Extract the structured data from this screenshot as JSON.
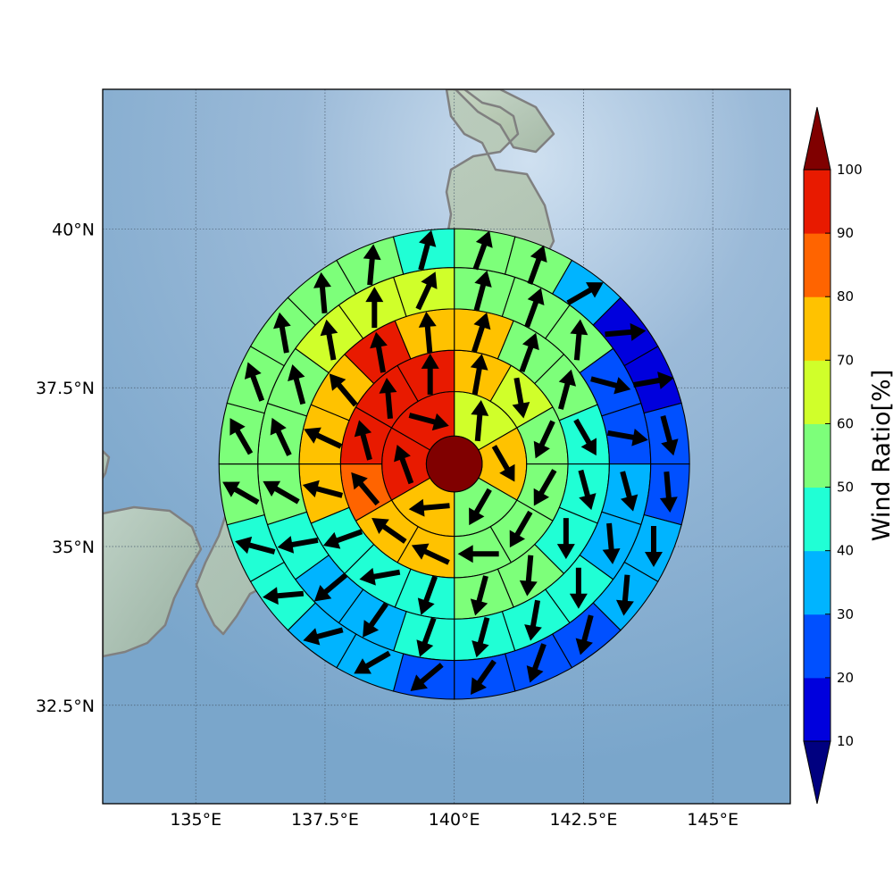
{
  "chart_data": {
    "type": "polar-sector-map",
    "map": {
      "lon_ticks": [
        {
          "value": 135,
          "label": "135°E"
        },
        {
          "value": 137.5,
          "label": "137.5°E"
        },
        {
          "value": 140,
          "label": "140°E"
        },
        {
          "value": 142.5,
          "label": "142.5°E"
        },
        {
          "value": 145,
          "label": "145°E"
        }
      ],
      "lat_ticks": [
        {
          "value": 32.5,
          "label": "32.5°N"
        },
        {
          "value": 35,
          "label": "35°N"
        },
        {
          "value": 37.5,
          "label": "37.5°N"
        },
        {
          "value": 40,
          "label": "40°N"
        }
      ],
      "lon_range": [
        133.2,
        146.5
      ],
      "lat_range": [
        30.95,
        42.2
      ],
      "grid": true,
      "coastline_color": "#808080"
    },
    "center": {
      "lon": 140,
      "lat": 36.3,
      "value": 100
    },
    "ring_radii_deg": [
      0.54,
      1.4,
      2.2,
      3.0,
      3.8,
      4.55
    ],
    "rings": [
      {
        "ring": 1,
        "sectors": 6,
        "values": [
          60,
          70,
          50,
          70,
          95,
          95
        ],
        "arrows_deg": [
          5,
          150,
          210,
          265,
          340,
          105
        ]
      },
      {
        "ring": 2,
        "sectors": 12,
        "values": [
          70,
          60,
          50,
          50,
          50,
          50,
          70,
          70,
          85,
          95,
          95,
          95
        ],
        "arrows_deg": [
          10,
          170,
          205,
          210,
          210,
          270,
          295,
          305,
          320,
          345,
          355,
          0
        ]
      },
      {
        "ring": 3,
        "sectors": 16,
        "values": [
          70,
          50,
          50,
          45,
          45,
          45,
          50,
          55,
          45,
          45,
          45,
          70,
          70,
          70,
          90,
          70
        ],
        "arrows_deg": [
          18,
          20,
          15,
          150,
          165,
          180,
          185,
          195,
          200,
          260,
          250,
          285,
          295,
          320,
          350,
          355
        ]
      },
      {
        "ring": 4,
        "sectors": 20,
        "values": [
          55,
          55,
          55,
          25,
          25,
          35,
          35,
          45,
          45,
          45,
          45,
          35,
          35,
          40,
          55,
          55,
          55,
          60,
          60,
          60
        ],
        "arrows_deg": [
          15,
          20,
          5,
          105,
          100,
          165,
          175,
          180,
          190,
          195,
          200,
          215,
          230,
          260,
          300,
          335,
          345,
          350,
          360,
          25
        ]
      },
      {
        "ring": 5,
        "sectors": 24,
        "values": [
          55,
          55,
          35,
          15,
          15,
          25,
          25,
          30,
          30,
          20,
          20,
          25,
          25,
          30,
          30,
          40,
          40,
          55,
          55,
          55,
          55,
          55,
          55,
          45
        ],
        "arrows_deg": [
          20,
          20,
          60,
          85,
          80,
          165,
          175,
          180,
          185,
          195,
          200,
          215,
          230,
          240,
          255,
          265,
          285,
          300,
          330,
          340,
          350,
          355,
          5,
          15
        ]
      }
    ],
    "colorbar": {
      "label": "Wind Ratio[%]",
      "ticks": [
        10,
        20,
        30,
        40,
        50,
        60,
        70,
        80,
        90,
        100
      ],
      "extend": "both",
      "colors": {
        "under": "#000080",
        "b10": "#0000dd",
        "b20": "#0050ff",
        "b30": "#00b4ff",
        "b40": "#20ffd5",
        "b50": "#7dff7a",
        "b60": "#d0ff2a",
        "b70": "#ffc200",
        "b80": "#ff6400",
        "b90": "#e81a00",
        "over": "#800000"
      }
    }
  }
}
